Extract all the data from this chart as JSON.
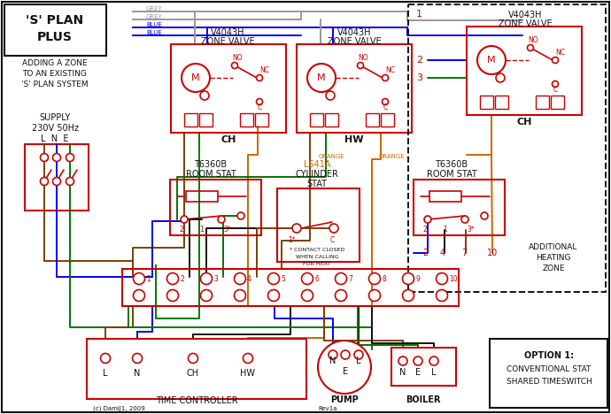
{
  "colors": {
    "red": "#cc0000",
    "blue": "#0000ee",
    "green": "#007700",
    "orange": "#cc6600",
    "grey": "#999999",
    "brown": "#7a4000",
    "black": "#111111",
    "white": "#ffffff"
  },
  "title1": "'S' PLAN",
  "title2": "PLUS",
  "subtitle": "ADDING A ZONE\nTO AN EXISTING\n'S' PLAN SYSTEM",
  "supply_label": "SUPPLY\n230V 50Hz",
  "lne": "L  N  E",
  "option_text": "OPTION 1:\n\nCONVENTIONAL STAT\nSHARED TIMESWITCH",
  "additional_text": "ADDITIONAL\nHEATING\nZONE",
  "copyright": "(c) DamiJ1, 2009",
  "rev": "Rev1a"
}
